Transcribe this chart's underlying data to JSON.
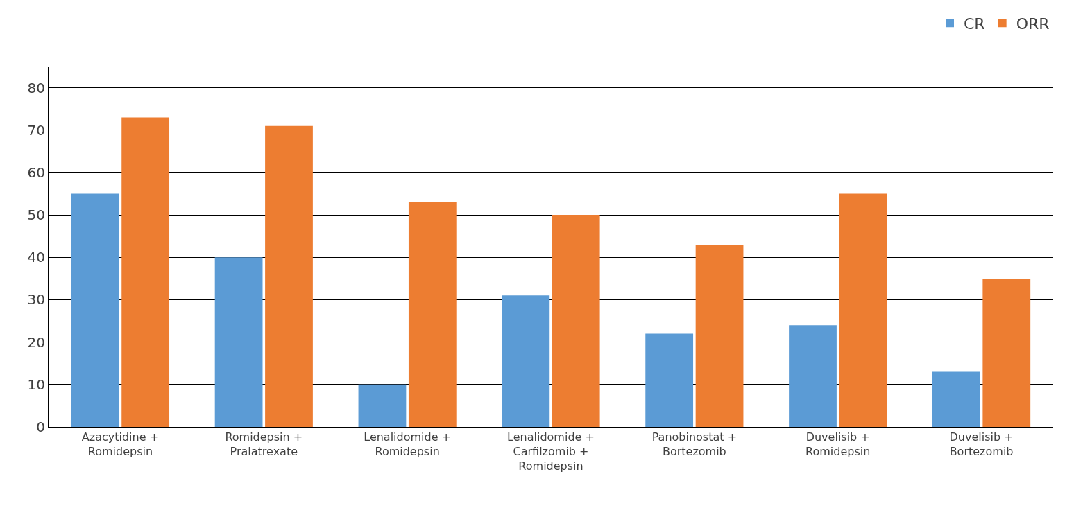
{
  "chart_data": {
    "type": "bar",
    "categories": [
      "Azacytidine +\nRomidepsin",
      "Romidepsin +\nPralatrexate",
      "Lenalidomide +\nRomidepsin",
      "Lenalidomide +\nCarfilzomib +\nRomidepsin",
      "Panobinostat +\nBortezomib",
      "Duvelisib +\nRomidepsin",
      "Duvelisib +\nBortezomib"
    ],
    "series": [
      {
        "name": "CR",
        "color": "#5b9bd5",
        "values": [
          55,
          40,
          10,
          31,
          22,
          24,
          13
        ]
      },
      {
        "name": "ORR",
        "color": "#ed7d31",
        "values": [
          73,
          71,
          53,
          50,
          43,
          55,
          35
        ]
      }
    ],
    "ylim": [
      0,
      85
    ],
    "yticks": [
      0,
      10,
      20,
      30,
      40,
      50,
      60,
      70,
      80
    ],
    "grid": "y",
    "legend": "top right"
  }
}
